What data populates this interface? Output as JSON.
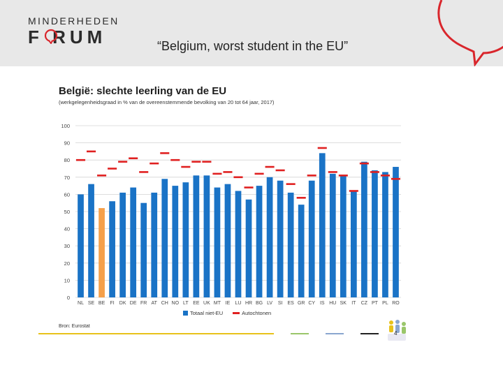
{
  "header": {
    "logo_top": "MINDERHEDEN",
    "logo_bottom": "F RUM",
    "slide_title": "“Belgium, worst student in the EU”"
  },
  "footer": {
    "source": "Bron: Eurostat",
    "page_number": "4"
  },
  "colors": {
    "bar": "#1a73c6",
    "highlight_bar": "#f5a04a",
    "marker": "#e02020",
    "brand_red": "#d9262c"
  },
  "chart_data": {
    "type": "bar",
    "title": "België: slechte leerling van de EU",
    "subtitle": "(werkgelegenheidsgraad in % van de overeenstemmende bevolking van 20 tot 64 jaar, 2017)",
    "categories": [
      "NL",
      "SE",
      "BE",
      "FI",
      "DK",
      "DE",
      "FR",
      "AT",
      "CH",
      "NO",
      "LT",
      "EE",
      "UK",
      "MT",
      "IE",
      "LU",
      "HR",
      "BG",
      "LV",
      "SI",
      "ES",
      "GR",
      "CY",
      "IS",
      "HU",
      "SK",
      "IT",
      "CZ",
      "PT",
      "PL",
      "RO"
    ],
    "series": [
      {
        "name": "Totaal niet-EU",
        "type": "bar",
        "values": [
          60,
          66,
          52,
          56,
          61,
          64,
          55,
          61,
          69,
          65,
          67,
          71,
          71,
          64,
          66,
          62,
          57,
          65,
          70,
          68,
          61,
          54,
          68,
          84,
          72,
          71,
          62,
          79,
          74,
          73,
          76
        ]
      },
      {
        "name": "Autochtonen",
        "type": "marker",
        "values": [
          80,
          85,
          71,
          75,
          79,
          81,
          73,
          78,
          84,
          80,
          76,
          79,
          79,
          72,
          73,
          70,
          64,
          72,
          76,
          74,
          66,
          58,
          71,
          87,
          73,
          71,
          62,
          78,
          73,
          71,
          69
        ]
      }
    ],
    "highlight_category": "BE",
    "ylim": [
      0,
      100
    ],
    "yticks": [
      0,
      10,
      20,
      30,
      40,
      50,
      60,
      70,
      80,
      90,
      100
    ],
    "grid": true,
    "legend": "bottom"
  }
}
